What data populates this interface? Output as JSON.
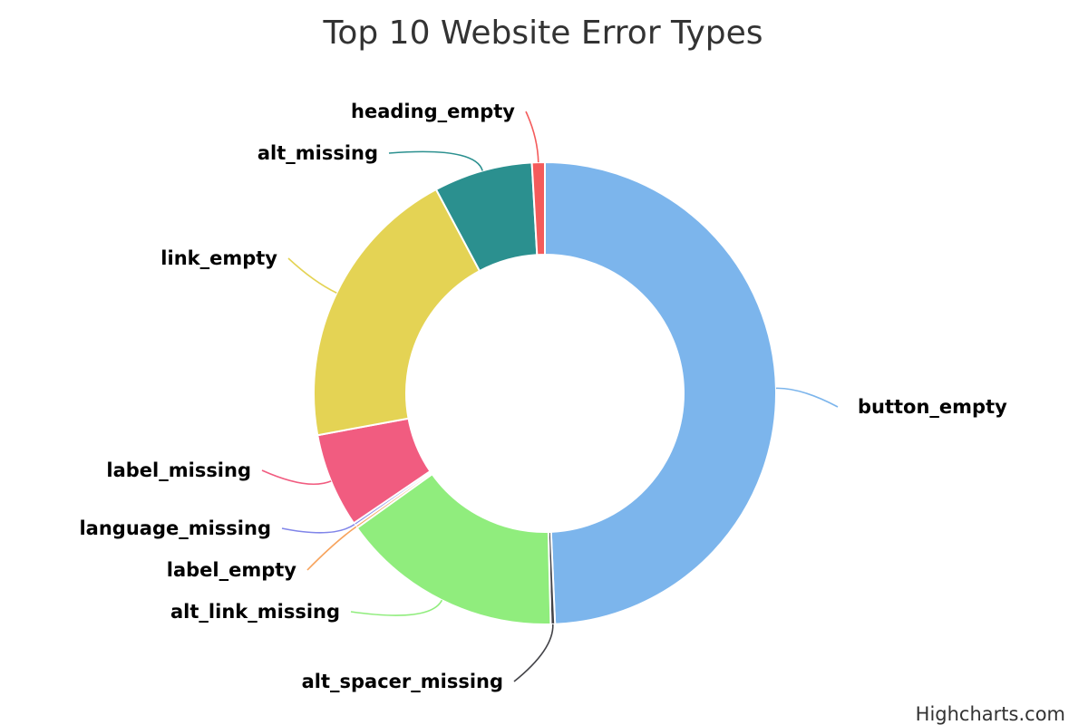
{
  "chart_data": {
    "type": "pie",
    "variant": "donut",
    "title": "Top 10 Website Error Types",
    "legend": "none",
    "slices": [
      {
        "name": "button_empty",
        "value": 49.3,
        "color": "#7cb5ec"
      },
      {
        "name": "alt_spacer_missing",
        "value": 0.3,
        "color": "#434348"
      },
      {
        "name": "alt_link_missing",
        "value": 15.5,
        "color": "#90ed7d"
      },
      {
        "name": "label_empty",
        "value": 0.2,
        "color": "#f7a35c"
      },
      {
        "name": "language_missing",
        "value": 0.2,
        "color": "#8085e9"
      },
      {
        "name": "label_missing",
        "value": 6.6,
        "color": "#f15c80"
      },
      {
        "name": "link_empty",
        "value": 20.1,
        "color": "#e4d354"
      },
      {
        "name": "alt_missing",
        "value": 6.9,
        "color": "#2b908f"
      },
      {
        "name": "heading_empty",
        "value": 0.9,
        "color": "#f45b5b"
      }
    ]
  },
  "credit": "Highcharts.com"
}
